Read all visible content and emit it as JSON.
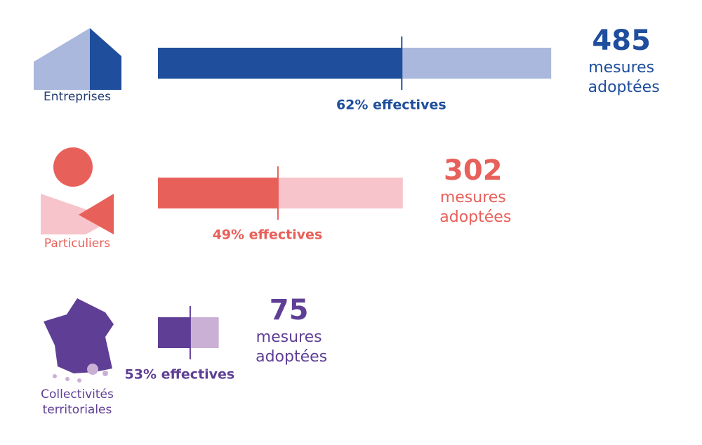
{
  "chart_data": {
    "type": "progress-bar",
    "categories": [
      "Entreprises",
      "Particuliers",
      "Collectivités territoriales"
    ],
    "values": [
      485,
      302,
      75
    ],
    "unit_label": "mesures adoptées",
    "effective_pct": [
      62,
      49,
      53
    ],
    "effective_labels": [
      "62% effectives",
      "49% effectives",
      "53% effectives"
    ],
    "colors": [
      "#1f4e9c",
      "#e8605a",
      "#5f3f95"
    ],
    "light_colors": [
      "#aab8dd",
      "#f6c4ca",
      "#cbb0d6"
    ]
  }
}
